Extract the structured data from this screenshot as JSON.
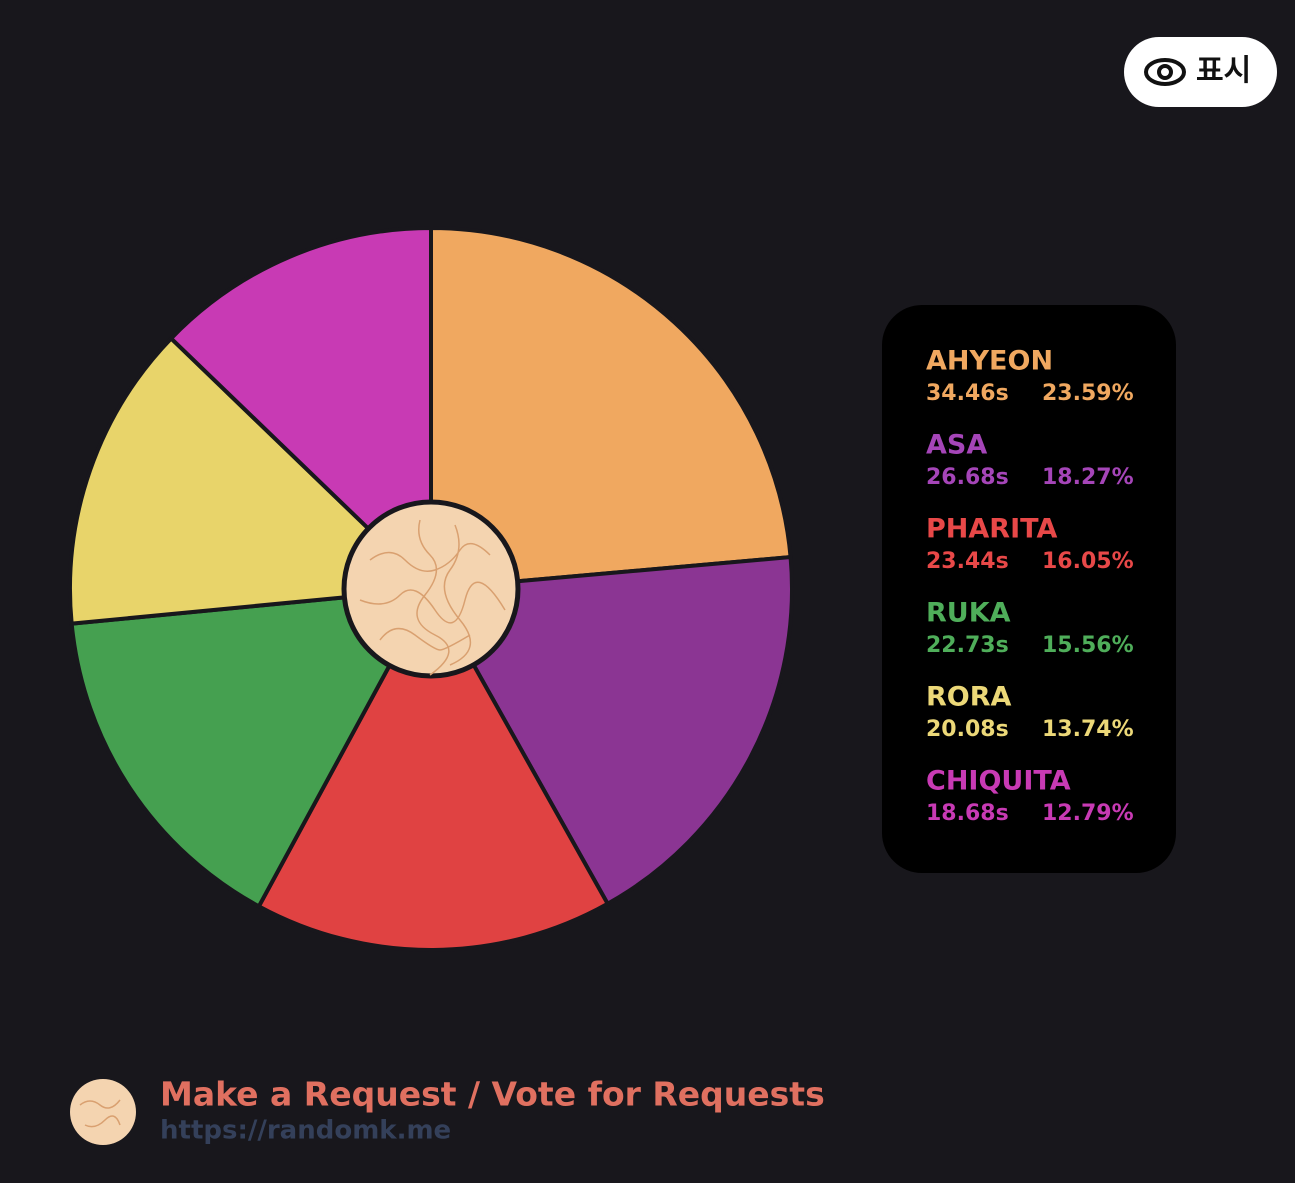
{
  "chart_data": {
    "type": "pie",
    "categories": [
      "AHYEON",
      "ASA",
      "PHARITA",
      "RUKA",
      "RORA",
      "CHIQUITA"
    ],
    "values": [
      23.59,
      18.27,
      16.05,
      15.56,
      13.74,
      12.79
    ],
    "value_labels": [
      "23.59%",
      "18.27%",
      "16.05%",
      "15.56%",
      "13.74%",
      "12.79%"
    ],
    "durations": [
      34.46,
      26.68,
      23.44,
      22.73,
      20.08,
      18.68
    ],
    "duration_labels": [
      "34.46s",
      "26.68s",
      "23.44s",
      "22.73s",
      "20.08s",
      "18.68s"
    ],
    "colors": [
      "#f0a860",
      "#8b3593",
      "#e04242",
      "#45a050",
      "#e8d46a",
      "#c83ab4"
    ],
    "label_colors": [
      "#f0a860",
      "#a545b8",
      "#e84848",
      "#4fae5a",
      "#ecd878",
      "#c83ab4"
    ]
  },
  "overlay_button": {
    "label": "표시"
  },
  "footer": {
    "title": "Make a Request / Vote for Requests",
    "url": "https://randomk.me"
  }
}
